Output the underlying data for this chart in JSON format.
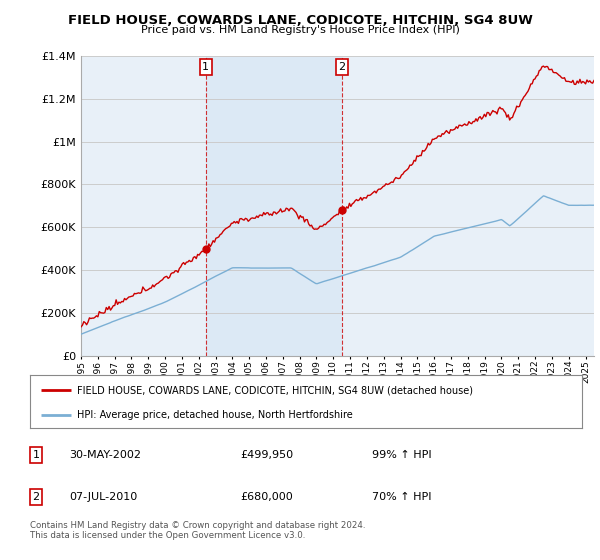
{
  "title": "FIELD HOUSE, COWARDS LANE, CODICOTE, HITCHIN, SG4 8UW",
  "subtitle": "Price paid vs. HM Land Registry's House Price Index (HPI)",
  "legend_line1": "FIELD HOUSE, COWARDS LANE, CODICOTE, HITCHIN, SG4 8UW (detached house)",
  "legend_line2": "HPI: Average price, detached house, North Hertfordshire",
  "table_rows": [
    {
      "num": "1",
      "date": "30-MAY-2002",
      "price": "£499,950",
      "pct": "99% ↑ HPI"
    },
    {
      "num": "2",
      "date": "07-JUL-2010",
      "price": "£680,000",
      "pct": "70% ↑ HPI"
    }
  ],
  "footer": "Contains HM Land Registry data © Crown copyright and database right 2024.\nThis data is licensed under the Open Government Licence v3.0.",
  "sale1_year": 2002.42,
  "sale1_price": 499950,
  "sale2_year": 2010.51,
  "sale2_price": 680000,
  "ylim": [
    0,
    1400000
  ],
  "xlim_start": 1995,
  "xlim_end": 2025.5,
  "red_color": "#cc0000",
  "blue_color": "#7bafd4",
  "highlight_color": "#dce9f5",
  "plot_bg": "#e8f0f8",
  "grid_color": "#cccccc",
  "title_fontsize": 9.5,
  "subtitle_fontsize": 8.5
}
